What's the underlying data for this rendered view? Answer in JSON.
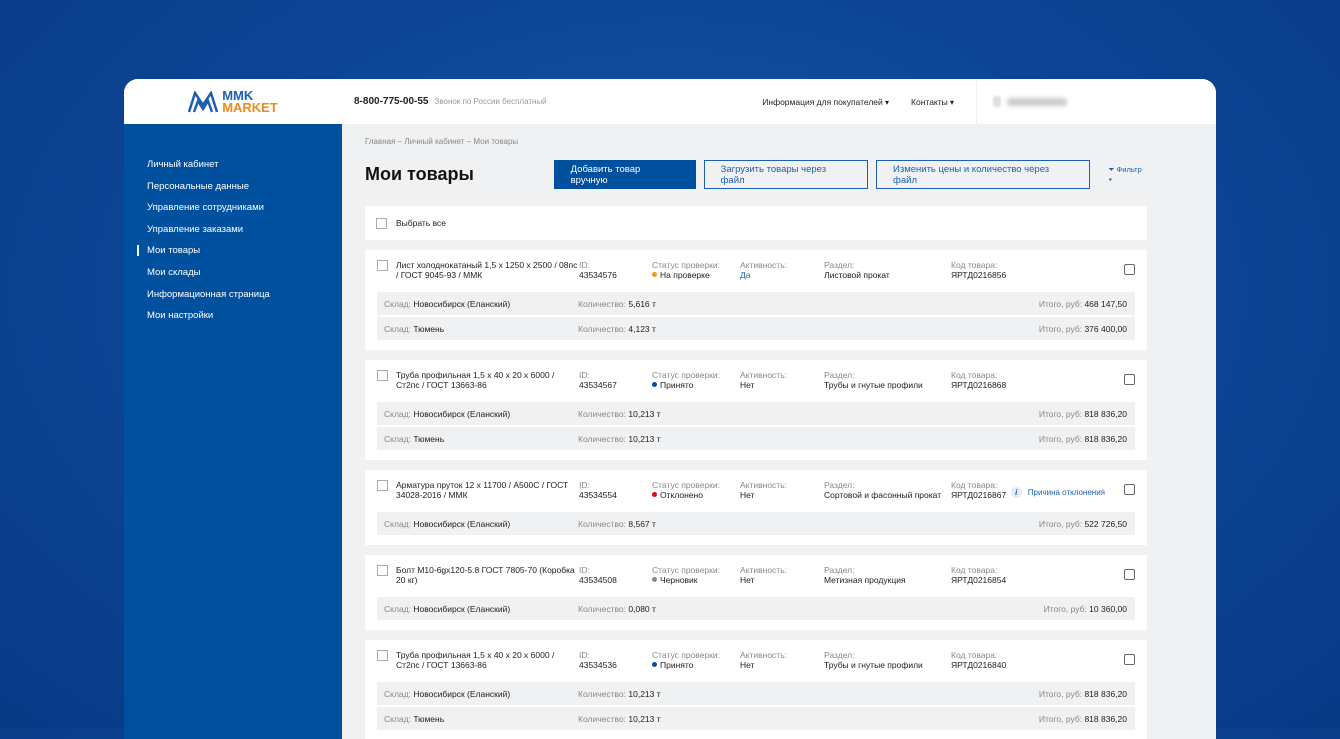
{
  "header": {
    "logo_top": "MMK",
    "logo_bottom": "MARKET",
    "phone": "8-800-775-00-55",
    "phone_note": "Звонок по России бесплатный",
    "nav": [
      "Информация для покупателей",
      "Контакты"
    ]
  },
  "sidebar": {
    "items": [
      {
        "label": "Личный кабинет"
      },
      {
        "label": "Персональные данные"
      },
      {
        "label": "Управление сотрудниками"
      },
      {
        "label": "Управление заказами"
      },
      {
        "label": "Мои товары",
        "active": true
      },
      {
        "label": "Мои склады"
      },
      {
        "label": "Информационная страница"
      },
      {
        "label": "Мои настройки"
      }
    ]
  },
  "main": {
    "breadcrumb": "Главная – Личный кабинет – Мои товары",
    "title": "Мои товары",
    "btn_add": "Добавить товар вручную",
    "btn_upload": "Загрузить товары через файл",
    "btn_prices": "Изменить цены и количество через файл",
    "filter": "Фильтр",
    "select_all": "Выбрать все"
  },
  "labels": {
    "id": "ID:",
    "status": "Статус проверки:",
    "activity": "Активность:",
    "section": "Раздел:",
    "code": "Код товара:",
    "warehouse": "Склад:",
    "qty": "Количество:",
    "total": "Итого, руб:",
    "reason": "Причина отклонения"
  },
  "colors": {
    "accent": "#0050a0",
    "status_review": "#f39c12",
    "status_accepted": "#0050a0",
    "status_rejected": "#e3001b",
    "status_draft": "#888888"
  },
  "products": [
    {
      "title": "Лист холоднокатаный 1,5 x 1250 x 2500 / 08пс / ГОСТ 9045-93 / ММК",
      "id": "43534576",
      "status": "На проверке",
      "status_color": "#f39c12",
      "activity": "Да",
      "activity_link": true,
      "section": "Листовой прокат",
      "code": "ЯРТД0216856",
      "rows": [
        {
          "wh": "Новосибирск (Еланский)",
          "qty": "5,616 т",
          "total": "468 147,50"
        },
        {
          "wh": "Тюмень",
          "qty": "4,123 т",
          "total": "376 400,00"
        }
      ]
    },
    {
      "title": "Труба профильная 1,5 x 40 x 20 x 6000 / Ст2пс / ГОСТ 13663-86",
      "id": "43534567",
      "status": "Принято",
      "status_color": "#0050a0",
      "activity": "Нет",
      "section": "Трубы и гнутые профили",
      "code": "ЯРТД0216868",
      "rows": [
        {
          "wh": "Новосибирск (Еланский)",
          "qty": "10,213 т",
          "total": "818 836,20"
        },
        {
          "wh": "Тюмень",
          "qty": "10,213 т",
          "total": "818 836,20"
        }
      ]
    },
    {
      "title": "Арматура пруток 12 x 11700 / А500С / ГОСТ 34028-2016 / ММК",
      "id": "43534554",
      "status": "Отклонено",
      "status_color": "#e3001b",
      "activity": "Нет",
      "section": "Сортовой и фасонный прокат",
      "code": "ЯРТД0216867",
      "reason": true,
      "rows": [
        {
          "wh": "Новосибирск (Еланский)",
          "qty": "8,567 т",
          "total": "522 726,50"
        }
      ]
    },
    {
      "title": "Болт М10-6gx120-5.8 ГОСТ 7805-70 (Коробка 20 кг)",
      "id": "43534508",
      "status": "Черновик",
      "status_color": "#888888",
      "activity": "Нет",
      "section": "Метизная продукция",
      "code": "ЯРТД0216854",
      "rows": [
        {
          "wh": "Новосибирск (Еланский)",
          "qty": "0,080 т",
          "total": "10 360,00"
        }
      ]
    },
    {
      "title": "Труба профильная 1,5 x 40 x 20 x 6000 / Ст2пс / ГОСТ 13663-86",
      "id": "43534536",
      "status": "Принято",
      "status_color": "#0050a0",
      "activity": "Нет",
      "section": "Трубы и гнутые профили",
      "code": "ЯРТД0216840",
      "rows": [
        {
          "wh": "Новосибирск (Еланский)",
          "qty": "10,213 т",
          "total": "818 836,20"
        },
        {
          "wh": "Тюмень",
          "qty": "10,213 т",
          "total": "818 836,20"
        }
      ]
    }
  ]
}
